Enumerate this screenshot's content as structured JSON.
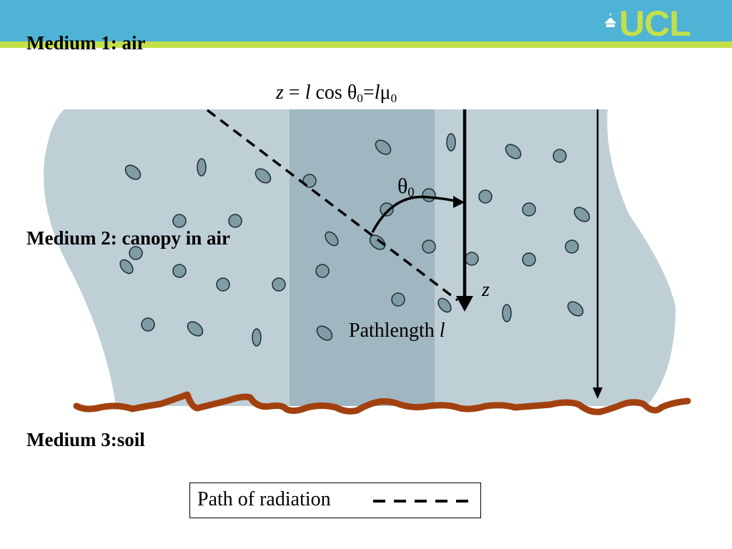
{
  "header": {
    "logo_text": "UCL",
    "logo_icon": "ucl-dome-icon"
  },
  "media": {
    "air": "Medium 1: air",
    "canopy": "Medium 2: canopy in air",
    "soil": "Medium 3:soil"
  },
  "formula": {
    "z": "z",
    "eq": " = ",
    "l1": "l",
    "cos": " cos ",
    "theta": "θ",
    "sub1": "0",
    "eq2": "=",
    "l2": "l",
    "mu": "μ",
    "sub2": "0"
  },
  "angle_label": {
    "theta": "θ",
    "sub": "0"
  },
  "z_axis_label": "z",
  "pathlength": {
    "text": "Pathlength ",
    "var": "l"
  },
  "legend": {
    "text": "Path of radiation"
  },
  "colors": {
    "header_blue": "#4fb3d6",
    "header_green": "#c3e04a",
    "canopy_fill": "#bfcfd6",
    "beam_fill": "#a0b6c0",
    "leaf_fill": "#7f9ba4",
    "soil": "#a2410f"
  }
}
